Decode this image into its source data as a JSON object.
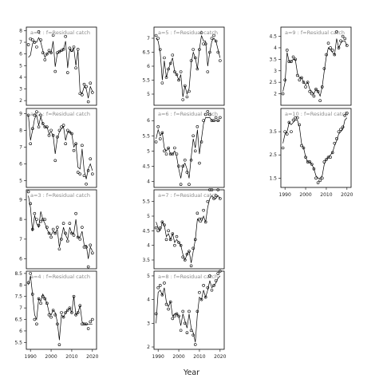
{
  "xlabel": "Year",
  "chart_data": {
    "type": "scatter",
    "xlabel": "Year",
    "ylabel": "",
    "layout_note_free": true,
    "panels": [
      {
        "label": "a=1  :  f=Residual catch",
        "xlim": [
          1988,
          2022
        ],
        "ylim": [
          1.6,
          8.3
        ],
        "yticks": [
          2,
          3,
          4,
          5,
          6,
          7,
          8
        ],
        "x": [
          1989,
          1990,
          1991,
          1992,
          1993,
          1994,
          1995,
          1996,
          1997,
          1998,
          1999,
          2000,
          2001,
          2002,
          2003,
          2004,
          2005,
          2006,
          2007,
          2008,
          2009,
          2010,
          2011,
          2012,
          2013,
          2014,
          2015,
          2016,
          2017,
          2018,
          2019,
          2020
        ],
        "points": [
          6.8,
          7.3,
          7.2,
          7.0,
          6.6,
          7.9,
          7.2,
          6.1,
          5.5,
          6.0,
          6.3,
          6.1,
          7.6,
          4.5,
          6.1,
          6.2,
          6.3,
          6.4,
          7.5,
          4.4,
          6.5,
          6.3,
          6.6,
          4.8,
          6.4,
          2.6,
          2.5,
          3.4,
          3.2,
          1.9,
          3.5,
          2.7
        ],
        "fit": [
          5.7,
          5.9,
          6.9,
          7.1,
          7.0,
          7.4,
          7.0,
          6.3,
          5.7,
          6.0,
          6.2,
          6.1,
          7.1,
          4.9,
          6.0,
          6.2,
          6.3,
          6.4,
          7.1,
          4.8,
          6.4,
          6.2,
          6.5,
          5.0,
          6.3,
          2.8,
          2.6,
          3.2,
          3.0,
          2.2,
          3.2,
          2.8
        ]
      },
      {
        "label": "a=2  :  f=Residual catch",
        "xlim": [
          1988,
          2022
        ],
        "ylim": [
          4.6,
          9.3
        ],
        "yticks": [
          5,
          6,
          7,
          8,
          9
        ],
        "x": [
          1989,
          1990,
          1991,
          1992,
          1993,
          1994,
          1995,
          1996,
          1997,
          1998,
          1999,
          2000,
          2001,
          2002,
          2003,
          2004,
          2005,
          2006,
          2007,
          2008,
          2009,
          2010,
          2011,
          2012,
          2013,
          2014,
          2015,
          2016,
          2017,
          2018,
          2019,
          2020
        ],
        "points": [
          8.9,
          7.2,
          8.1,
          8.9,
          9.1,
          8.2,
          8.9,
          8.4,
          8.2,
          8.2,
          7.7,
          8.0,
          7.7,
          6.2,
          7.6,
          8.0,
          8.2,
          8.3,
          7.2,
          8.0,
          7.9,
          7.8,
          6.8,
          7.2,
          5.5,
          5.4,
          7.1,
          5.3,
          4.8,
          5.6,
          6.3,
          5.4
        ],
        "fit": [
          8.9,
          7.4,
          8.0,
          8.7,
          8.9,
          8.3,
          8.8,
          8.4,
          8.2,
          8.2,
          7.8,
          7.9,
          7.7,
          6.6,
          7.5,
          7.9,
          8.1,
          8.2,
          7.4,
          7.9,
          7.9,
          7.8,
          7.0,
          7.2,
          5.8,
          5.7,
          6.9,
          5.6,
          5.1,
          5.7,
          6.0,
          5.6
        ]
      },
      {
        "label": "a=3  :  f=Residual catch",
        "xlim": [
          1988,
          2022
        ],
        "ylim": [
          5.5,
          9.5
        ],
        "yticks": [
          6,
          7,
          8,
          9
        ],
        "x": [
          1989,
          1990,
          1991,
          1992,
          1993,
          1994,
          1995,
          1996,
          1997,
          1998,
          1999,
          2000,
          2001,
          2002,
          2003,
          2004,
          2005,
          2006,
          2007,
          2008,
          2009,
          2010,
          2011,
          2012,
          2013,
          2014,
          2015,
          2016,
          2017,
          2018,
          2019,
          2020
        ],
        "points": [
          9.4,
          8.8,
          7.5,
          8.3,
          8.0,
          7.7,
          7.9,
          8.0,
          8.0,
          7.6,
          7.3,
          7.1,
          7.5,
          7.3,
          7.6,
          6.5,
          7.0,
          7.8,
          7.3,
          6.9,
          7.8,
          7.3,
          7.2,
          8.3,
          7.1,
          7.0,
          7.6,
          6.6,
          6.6,
          5.6,
          6.7,
          6.3
        ],
        "fit": [
          9.2,
          8.6,
          7.4,
          8.2,
          7.8,
          7.6,
          8.4,
          8.0,
          7.8,
          7.5,
          7.3,
          7.2,
          7.4,
          7.3,
          7.5,
          6.6,
          7.1,
          7.6,
          7.2,
          7.0,
          7.6,
          7.3,
          7.3,
          8.0,
          7.1,
          7.1,
          7.4,
          6.7,
          6.7,
          6.0,
          6.6,
          6.4
        ]
      },
      {
        "label": "a=4  :  f=Residual catch",
        "xlim": [
          1988,
          2022
        ],
        "ylim": [
          5.2,
          8.6
        ],
        "yticks": [
          5.5,
          6,
          6.5,
          7,
          7.5,
          8,
          8.5
        ],
        "x": [
          1989,
          1990,
          1991,
          1992,
          1993,
          1994,
          1995,
          1996,
          1997,
          1998,
          1999,
          2000,
          2001,
          2002,
          2003,
          2004,
          2005,
          2006,
          2007,
          2008,
          2009,
          2010,
          2011,
          2012,
          2013,
          2014,
          2015,
          2016,
          2017,
          2018,
          2019,
          2020
        ],
        "points": [
          8.1,
          8.5,
          7.6,
          6.5,
          6.3,
          7.4,
          7.2,
          7.5,
          7.4,
          7.2,
          6.7,
          6.6,
          6.9,
          6.7,
          6.3,
          5.4,
          6.8,
          6.6,
          6.8,
          6.9,
          7.0,
          6.8,
          7.5,
          6.7,
          6.8,
          7.1,
          6.3,
          6.3,
          6.3,
          6.1,
          6.4,
          6.5
        ],
        "fit": [
          8.0,
          8.4,
          7.6,
          6.7,
          6.5,
          7.4,
          7.3,
          7.6,
          7.4,
          7.2,
          6.8,
          6.7,
          6.9,
          6.8,
          6.4,
          5.6,
          6.7,
          6.6,
          6.8,
          6.9,
          7.0,
          6.8,
          7.5,
          6.7,
          6.8,
          7.1,
          6.4,
          6.3,
          6.3,
          6.3,
          6.3,
          6.3
        ]
      },
      {
        "label": "a=5  :  f=Residual catch",
        "xlim": [
          1988,
          2022
        ],
        "ylim": [
          4.6,
          7.4
        ],
        "yticks": [
          5.0,
          5.5,
          6.0,
          6.5,
          7.0
        ],
        "x": [
          1989,
          1990,
          1991,
          1992,
          1993,
          1994,
          1995,
          1996,
          1997,
          1998,
          1999,
          2000,
          2001,
          2002,
          2003,
          2004,
          2005,
          2006,
          2007,
          2008,
          2009,
          2010,
          2011,
          2012,
          2013,
          2014,
          2015,
          2016,
          2017,
          2018,
          2019,
          2020
        ],
        "points": [
          7.1,
          7.0,
          6.6,
          5.4,
          6.3,
          5.6,
          5.9,
          6.1,
          6.4,
          5.8,
          5.7,
          5.5,
          5.8,
          4.8,
          5.3,
          4.9,
          5.1,
          6.2,
          6.6,
          6.3,
          5.9,
          6.6,
          7.2,
          6.8,
          6.8,
          5.8,
          6.5,
          7.0,
          7.1,
          6.9,
          6.5,
          6.2
        ],
        "fit": [
          7.0,
          6.9,
          6.5,
          5.5,
          6.2,
          5.6,
          5.9,
          6.1,
          6.3,
          5.8,
          5.7,
          5.5,
          5.7,
          4.9,
          5.3,
          5.0,
          5.2,
          6.1,
          6.5,
          6.3,
          5.9,
          6.6,
          7.1,
          6.9,
          6.9,
          6.0,
          6.5,
          6.9,
          7.0,
          6.9,
          6.6,
          6.3
        ]
      },
      {
        "label": "a=6  :  f=Residual catch",
        "xlim": [
          1988,
          2022
        ],
        "ylim": [
          3.8,
          6.4
        ],
        "yticks": [
          4.0,
          4.5,
          5.0,
          5.5,
          6.0
        ],
        "x": [
          1989,
          1990,
          1991,
          1992,
          1993,
          1994,
          1995,
          1996,
          1997,
          1998,
          1999,
          2000,
          2001,
          2002,
          2003,
          2004,
          2005,
          2006,
          2007,
          2008,
          2009,
          2010,
          2011,
          2012,
          2013,
          2014,
          2015,
          2016,
          2017,
          2018,
          2019,
          2020
        ],
        "points": [
          5.3,
          5.8,
          5.4,
          5.6,
          5.0,
          4.9,
          5.1,
          4.9,
          4.9,
          5.1,
          4.9,
          4.5,
          3.9,
          4.5,
          4.7,
          4.3,
          3.9,
          4.7,
          5.5,
          5.0,
          5.8,
          4.6,
          5.3,
          6.0,
          6.2,
          6.3,
          6.2,
          6.0,
          6.0,
          6.1,
          6.0,
          6.1
        ],
        "fit": [
          5.4,
          5.7,
          5.5,
          5.6,
          5.1,
          5.0,
          5.1,
          4.9,
          4.9,
          5.0,
          4.8,
          4.4,
          4.1,
          4.5,
          4.6,
          4.4,
          4.1,
          4.8,
          5.4,
          5.1,
          5.7,
          4.9,
          5.4,
          5.9,
          6.1,
          6.1,
          6.1,
          6.0,
          6.0,
          6.0,
          6.0,
          6.0
        ]
      },
      {
        "label": "a=7  :  f=Residual catch",
        "xlim": [
          1988,
          2022
        ],
        "ylim": [
          3.2,
          5.9
        ],
        "yticks": [
          3.5,
          4.0,
          4.5,
          5.0,
          5.5
        ],
        "x": [
          1989,
          1990,
          1991,
          1992,
          1993,
          1994,
          1995,
          1996,
          1997,
          1998,
          1999,
          2000,
          2001,
          2002,
          2003,
          2004,
          2005,
          2006,
          2007,
          2008,
          2009,
          2010,
          2011,
          2012,
          2013,
          2014,
          2015,
          2016,
          2017,
          2018,
          2019,
          2020
        ],
        "points": [
          4.6,
          4.5,
          4.6,
          4.8,
          4.7,
          4.2,
          4.5,
          4.2,
          4.4,
          4.0,
          4.3,
          4.1,
          4.0,
          3.6,
          3.5,
          3.7,
          3.8,
          3.3,
          3.9,
          4.2,
          5.1,
          4.9,
          4.9,
          5.2,
          4.8,
          5.5,
          5.9,
          5.9,
          5.6,
          5.7,
          5.9,
          5.6
        ],
        "fit": [
          4.8,
          4.6,
          4.5,
          4.8,
          4.7,
          4.3,
          4.4,
          4.2,
          4.4,
          4.1,
          4.2,
          4.1,
          4.0,
          3.7,
          3.5,
          3.7,
          3.8,
          3.4,
          3.8,
          4.2,
          4.9,
          4.8,
          4.8,
          5.0,
          4.8,
          5.3,
          5.6,
          5.7,
          5.6,
          5.6,
          5.7,
          5.6
        ]
      },
      {
        "label": "a=8  :  f=Residual catch",
        "xlim": [
          1988,
          2022
        ],
        "ylim": [
          1.9,
          5.2
        ],
        "yticks": [
          2.0,
          3.0,
          4.0,
          5.0
        ],
        "x": [
          1989,
          1990,
          1991,
          1992,
          1993,
          1994,
          1995,
          1996,
          1997,
          1998,
          1999,
          2000,
          2001,
          2002,
          2003,
          2004,
          2005,
          2006,
          2007,
          2008,
          2009,
          2010,
          2011,
          2012,
          2013,
          2014,
          2015,
          2016,
          2017,
          2018,
          2019,
          2020
        ],
        "points": [
          3.4,
          4.5,
          4.6,
          4.2,
          4.7,
          3.8,
          3.6,
          3.9,
          3.2,
          3.3,
          3.4,
          3.3,
          2.7,
          3.5,
          3.0,
          2.6,
          3.5,
          2.7,
          2.5,
          2.1,
          3.5,
          4.3,
          4.0,
          4.6,
          4.1,
          4.5,
          5.0,
          4.4,
          4.6,
          4.8,
          5.1,
          5.2
        ],
        "fit": [
          3.0,
          4.3,
          4.4,
          4.2,
          4.5,
          3.9,
          3.7,
          3.9,
          3.3,
          3.4,
          3.4,
          3.3,
          2.9,
          3.4,
          3.1,
          2.8,
          3.4,
          2.8,
          2.6,
          2.2,
          3.4,
          4.1,
          4.0,
          4.4,
          4.1,
          4.4,
          4.8,
          4.5,
          4.6,
          4.7,
          4.9,
          5.0
        ]
      },
      {
        "label": "a=9  :  f=Residual catch",
        "xlim": [
          1988,
          2022
        ],
        "ylim": [
          1.5,
          4.9
        ],
        "yticks": [
          2.0,
          2.5,
          3.0,
          3.5,
          4.0,
          4.5
        ],
        "x": [
          1989,
          1990,
          1991,
          1992,
          1993,
          1994,
          1995,
          1996,
          1997,
          1998,
          1999,
          2000,
          2001,
          2002,
          2003,
          2004,
          2005,
          2006,
          2007,
          2008,
          2009,
          2010,
          2011,
          2012,
          2013,
          2014,
          2015,
          2016,
          2017,
          2018,
          2019,
          2020
        ],
        "points": [
          2.0,
          2.6,
          3.9,
          3.4,
          3.4,
          3.6,
          3.5,
          2.8,
          2.6,
          2.7,
          2.5,
          2.3,
          2.5,
          2.1,
          2.0,
          1.9,
          2.2,
          2.1,
          1.7,
          2.3,
          3.1,
          3.7,
          4.2,
          4.0,
          3.9,
          3.7,
          4.7,
          4.0,
          4.3,
          4.5,
          4.4,
          4.1
        ],
        "fit": [
          2.1,
          2.5,
          3.8,
          3.4,
          3.4,
          3.5,
          3.5,
          2.9,
          2.7,
          2.7,
          2.5,
          2.4,
          2.5,
          2.2,
          2.1,
          2.0,
          2.2,
          2.1,
          1.9,
          2.3,
          3.0,
          3.6,
          4.0,
          3.9,
          3.8,
          3.7,
          4.4,
          4.0,
          4.2,
          4.3,
          4.3,
          4.1
        ]
      },
      {
        "label": "a=10  :  f=Residual catch",
        "xlim": [
          1988,
          2022
        ],
        "ylim": [
          1.1,
          4.5
        ],
        "yticks": [
          1.5,
          2.5,
          3.5
        ],
        "x": [
          1989,
          1990,
          1991,
          1992,
          1993,
          1994,
          1995,
          1996,
          1997,
          1998,
          1999,
          2000,
          2001,
          2002,
          2003,
          2004,
          2005,
          2006,
          2007,
          2008,
          2009,
          2010,
          2011,
          2012,
          2013,
          2014,
          2015,
          2016,
          2017,
          2018,
          2019,
          2020
        ],
        "points": [
          2.8,
          3.5,
          3.4,
          3.9,
          3.5,
          4.0,
          4.1,
          4.1,
          3.8,
          2.9,
          2.8,
          2.4,
          2.2,
          2.2,
          2.1,
          1.9,
          1.5,
          1.3,
          1.4,
          1.5,
          2.2,
          2.3,
          2.4,
          2.4,
          2.6,
          3.0,
          3.2,
          3.5,
          3.6,
          3.7,
          4.2,
          4.3
        ],
        "fit": [
          3.0,
          3.4,
          3.5,
          3.9,
          3.8,
          3.9,
          4.0,
          4.0,
          3.7,
          3.0,
          2.8,
          2.4,
          2.2,
          2.2,
          2.1,
          1.9,
          1.6,
          1.5,
          1.5,
          1.6,
          2.1,
          2.3,
          2.4,
          2.5,
          2.6,
          2.9,
          3.1,
          3.4,
          3.5,
          3.6,
          4.0,
          4.1
        ]
      }
    ],
    "x_axis_ticks": [
      1990,
      2000,
      2010,
      2020
    ]
  }
}
